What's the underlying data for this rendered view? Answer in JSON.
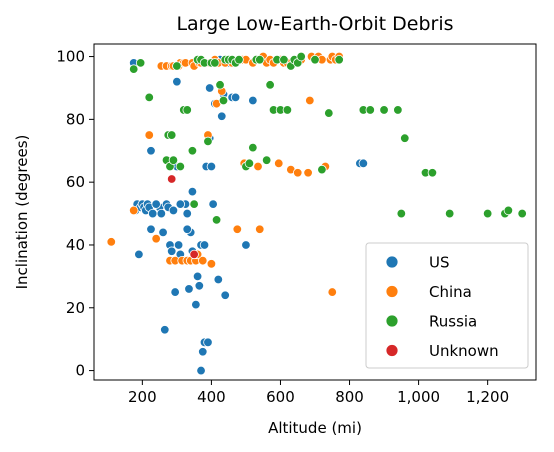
{
  "chart_data": {
    "type": "scatter",
    "title": "Large Low-Earth-Orbit Debris",
    "xlabel": "Altitude (mi)",
    "ylabel": "Inclination (degrees)",
    "xlim": [
      60,
      1340
    ],
    "ylim": [
      -3,
      104
    ],
    "x_ticks": [
      200,
      400,
      600,
      800,
      1000,
      1200
    ],
    "x_tick_labels": [
      "200",
      "400",
      "600",
      "800",
      "1,000",
      "1,200"
    ],
    "y_ticks": [
      0,
      20,
      40,
      60,
      80,
      100
    ],
    "y_tick_labels": [
      "0",
      "20",
      "40",
      "60",
      "80",
      "100"
    ],
    "legend_position": "lower-right",
    "series": [
      {
        "name": "US",
        "color": "#1f77b4",
        "points": [
          [
            175,
            98
          ],
          [
            180,
            51
          ],
          [
            185,
            53
          ],
          [
            190,
            37
          ],
          [
            195,
            52
          ],
          [
            200,
            53
          ],
          [
            205,
            52
          ],
          [
            210,
            51
          ],
          [
            215,
            53
          ],
          [
            220,
            52
          ],
          [
            225,
            45
          ],
          [
            230,
            50
          ],
          [
            240,
            53
          ],
          [
            250,
            52
          ],
          [
            255,
            50
          ],
          [
            260,
            44
          ],
          [
            265,
            13
          ],
          [
            270,
            53
          ],
          [
            275,
            52
          ],
          [
            280,
            40
          ],
          [
            285,
            38
          ],
          [
            290,
            51
          ],
          [
            295,
            25
          ],
          [
            300,
            92
          ],
          [
            305,
            40
          ],
          [
            310,
            37
          ],
          [
            320,
            35
          ],
          [
            325,
            53
          ],
          [
            330,
            50
          ],
          [
            335,
            26
          ],
          [
            340,
            44
          ],
          [
            345,
            57
          ],
          [
            350,
            53
          ],
          [
            355,
            21
          ],
          [
            360,
            30
          ],
          [
            365,
            27
          ],
          [
            370,
            40
          ],
          [
            375,
            6
          ],
          [
            380,
            9
          ],
          [
            385,
            65
          ],
          [
            390,
            9
          ],
          [
            395,
            74
          ],
          [
            400,
            65
          ],
          [
            405,
            53
          ],
          [
            410,
            85
          ],
          [
            420,
            29
          ],
          [
            425,
            99
          ],
          [
            430,
            81
          ],
          [
            435,
            88
          ],
          [
            440,
            24
          ],
          [
            450,
            98
          ],
          [
            460,
            87
          ],
          [
            470,
            87
          ],
          [
            500,
            40
          ],
          [
            520,
            86
          ],
          [
            830,
            66
          ],
          [
            840,
            66
          ],
          [
            225,
            70
          ],
          [
            240,
            53
          ],
          [
            310,
            53
          ],
          [
            330,
            45
          ],
          [
            300,
            65
          ],
          [
            345,
            38
          ],
          [
            370,
            0
          ],
          [
            380,
            40
          ],
          [
            395,
            90
          ]
        ]
      },
      {
        "name": "China",
        "color": "#ff7f0e",
        "points": [
          [
            110,
            41
          ],
          [
            175,
            51
          ],
          [
            220,
            75
          ],
          [
            240,
            42
          ],
          [
            255,
            97
          ],
          [
            270,
            97
          ],
          [
            280,
            35
          ],
          [
            285,
            97
          ],
          [
            290,
            97
          ],
          [
            295,
            35
          ],
          [
            300,
            97
          ],
          [
            305,
            97
          ],
          [
            310,
            98
          ],
          [
            315,
            35
          ],
          [
            320,
            98
          ],
          [
            325,
            98
          ],
          [
            330,
            35
          ],
          [
            340,
            35
          ],
          [
            345,
            98
          ],
          [
            350,
            97
          ],
          [
            355,
            35
          ],
          [
            360,
            37
          ],
          [
            365,
            98
          ],
          [
            370,
            98
          ],
          [
            375,
            35
          ],
          [
            380,
            98
          ],
          [
            385,
            98
          ],
          [
            390,
            75
          ],
          [
            395,
            98
          ],
          [
            400,
            34
          ],
          [
            410,
            99
          ],
          [
            415,
            85
          ],
          [
            420,
            98
          ],
          [
            430,
            89
          ],
          [
            440,
            98
          ],
          [
            450,
            99
          ],
          [
            460,
            98
          ],
          [
            475,
            45
          ],
          [
            490,
            99
          ],
          [
            495,
            66
          ],
          [
            500,
            99
          ],
          [
            510,
            66
          ],
          [
            520,
            98
          ],
          [
            530,
            99
          ],
          [
            535,
            65
          ],
          [
            540,
            45
          ],
          [
            550,
            100
          ],
          [
            560,
            98
          ],
          [
            570,
            99
          ],
          [
            580,
            98
          ],
          [
            595,
            66
          ],
          [
            600,
            99
          ],
          [
            610,
            98
          ],
          [
            620,
            98
          ],
          [
            630,
            64
          ],
          [
            640,
            98
          ],
          [
            650,
            63
          ],
          [
            660,
            99
          ],
          [
            680,
            63
          ],
          [
            690,
            100
          ],
          [
            700,
            99
          ],
          [
            710,
            100
          ],
          [
            720,
            99
          ],
          [
            730,
            65
          ],
          [
            745,
            99
          ],
          [
            750,
            100
          ],
          [
            760,
            99
          ],
          [
            770,
            100
          ],
          [
            750,
            25
          ],
          [
            685,
            86
          ]
        ]
      },
      {
        "name": "Russia",
        "color": "#2ca02c",
        "points": [
          [
            175,
            96
          ],
          [
            195,
            98
          ],
          [
            220,
            87
          ],
          [
            270,
            67
          ],
          [
            275,
            75
          ],
          [
            280,
            65
          ],
          [
            285,
            75
          ],
          [
            290,
            67
          ],
          [
            300,
            97
          ],
          [
            310,
            65
          ],
          [
            320,
            83
          ],
          [
            330,
            83
          ],
          [
            345,
            70
          ],
          [
            350,
            53
          ],
          [
            360,
            99
          ],
          [
            370,
            99
          ],
          [
            380,
            98
          ],
          [
            390,
            73
          ],
          [
            400,
            98
          ],
          [
            410,
            98
          ],
          [
            415,
            48
          ],
          [
            425,
            91
          ],
          [
            435,
            86
          ],
          [
            440,
            99
          ],
          [
            450,
            99
          ],
          [
            460,
            99
          ],
          [
            470,
            98
          ],
          [
            480,
            99
          ],
          [
            500,
            65
          ],
          [
            510,
            66
          ],
          [
            520,
            71
          ],
          [
            530,
            99
          ],
          [
            540,
            99
          ],
          [
            560,
            67
          ],
          [
            570,
            91
          ],
          [
            580,
            83
          ],
          [
            590,
            99
          ],
          [
            600,
            83
          ],
          [
            610,
            99
          ],
          [
            620,
            83
          ],
          [
            630,
            97
          ],
          [
            640,
            99
          ],
          [
            650,
            98
          ],
          [
            660,
            100
          ],
          [
            700,
            99
          ],
          [
            720,
            64
          ],
          [
            740,
            82
          ],
          [
            770,
            99
          ],
          [
            840,
            83
          ],
          [
            860,
            83
          ],
          [
            900,
            83
          ],
          [
            940,
            83
          ],
          [
            950,
            50
          ],
          [
            960,
            74
          ],
          [
            1020,
            63
          ],
          [
            1040,
            63
          ],
          [
            1090,
            50
          ],
          [
            1200,
            50
          ],
          [
            1250,
            50
          ],
          [
            1260,
            51
          ],
          [
            1300,
            50
          ]
        ]
      },
      {
        "name": "Unknown",
        "color": "#d62728",
        "points": [
          [
            285,
            61
          ],
          [
            350,
            37
          ]
        ]
      }
    ]
  }
}
